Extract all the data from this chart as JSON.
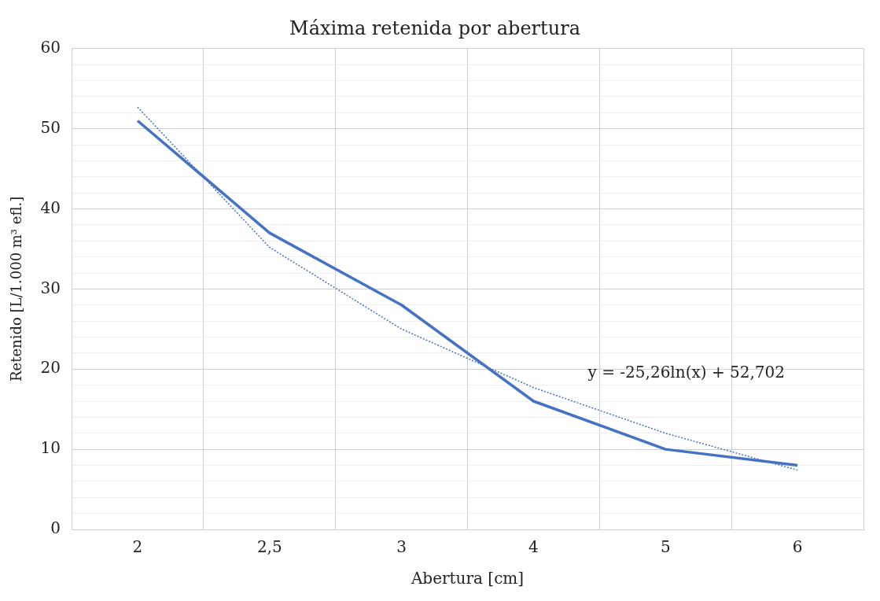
{
  "chart_data": {
    "type": "line",
    "title": "Máxima retenida por abertura",
    "xlabel": "Abertura [cm]",
    "ylabel": "Retenido [L/1.000 m³ efl.]",
    "categories": [
      "2",
      "2,5",
      "3",
      "4",
      "5",
      "6"
    ],
    "series": [
      {
        "color": "#4472c4",
        "values": [
          51,
          37,
          28,
          16,
          10,
          8
        ],
        "line_style": "solid"
      },
      {
        "color": "#4472c4",
        "values": [
          52.7,
          35.2,
          25,
          17.7,
          12,
          7.4
        ],
        "line_style": "dotted"
      }
    ],
    "ylim": [
      0,
      60
    ],
    "yticks": [
      0,
      {
        "value": 2,
        "label": null
      },
      {
        "value": 4,
        "label": null
      },
      {
        "value": 6,
        "label": null
      },
      {
        "value": 8,
        "label": null
      },
      10,
      {
        "value": 12,
        "label": null
      },
      {
        "value": 14,
        "label": null
      },
      {
        "value": 16,
        "label": null
      },
      {
        "value": 18,
        "label": null
      },
      20,
      {
        "value": 22,
        "label": null
      },
      {
        "value": 24,
        "label": null
      },
      {
        "value": 26,
        "label": null
      },
      {
        "value": 28,
        "label": null
      },
      30,
      {
        "value": 32,
        "label": null
      },
      {
        "value": 34,
        "label": null
      },
      {
        "value": 36,
        "label": null
      },
      {
        "value": 38,
        "label": null
      },
      40,
      {
        "value": 42,
        "label": null
      },
      {
        "value": 44,
        "label": null
      },
      {
        "value": 46,
        "label": null
      },
      {
        "value": 48,
        "label": null
      },
      50,
      {
        "value": 52,
        "label": null
      },
      {
        "value": 54,
        "label": null
      },
      {
        "value": 56,
        "label": null
      },
      {
        "value": 58,
        "label": null
      },
      60
    ],
    "annotations": [
      "y = -25,26ln(x) + 52,702"
    ],
    "grid": true,
    "legend": false,
    "marker": "none"
  }
}
